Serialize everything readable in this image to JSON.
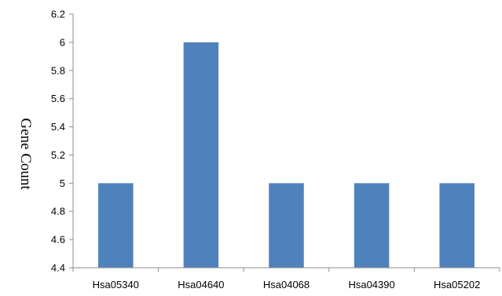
{
  "chart_data": {
    "type": "bar",
    "categories": [
      "Hsa05340",
      "Hsa04640",
      "Hsa04068",
      "Hsa04390",
      "Hsa05202"
    ],
    "values": [
      5,
      6,
      5,
      5,
      5
    ],
    "title": "",
    "xlabel": "",
    "ylabel": "Gene Count",
    "ylim": [
      4.4,
      6.2
    ],
    "yticks": [
      "4.4",
      "4.6",
      "4.8",
      "5",
      "5.2",
      "5.4",
      "5.6",
      "5.8",
      "6",
      "6.2"
    ],
    "grid": false,
    "legend": "none",
    "bar_color": "#4f81bd"
  }
}
